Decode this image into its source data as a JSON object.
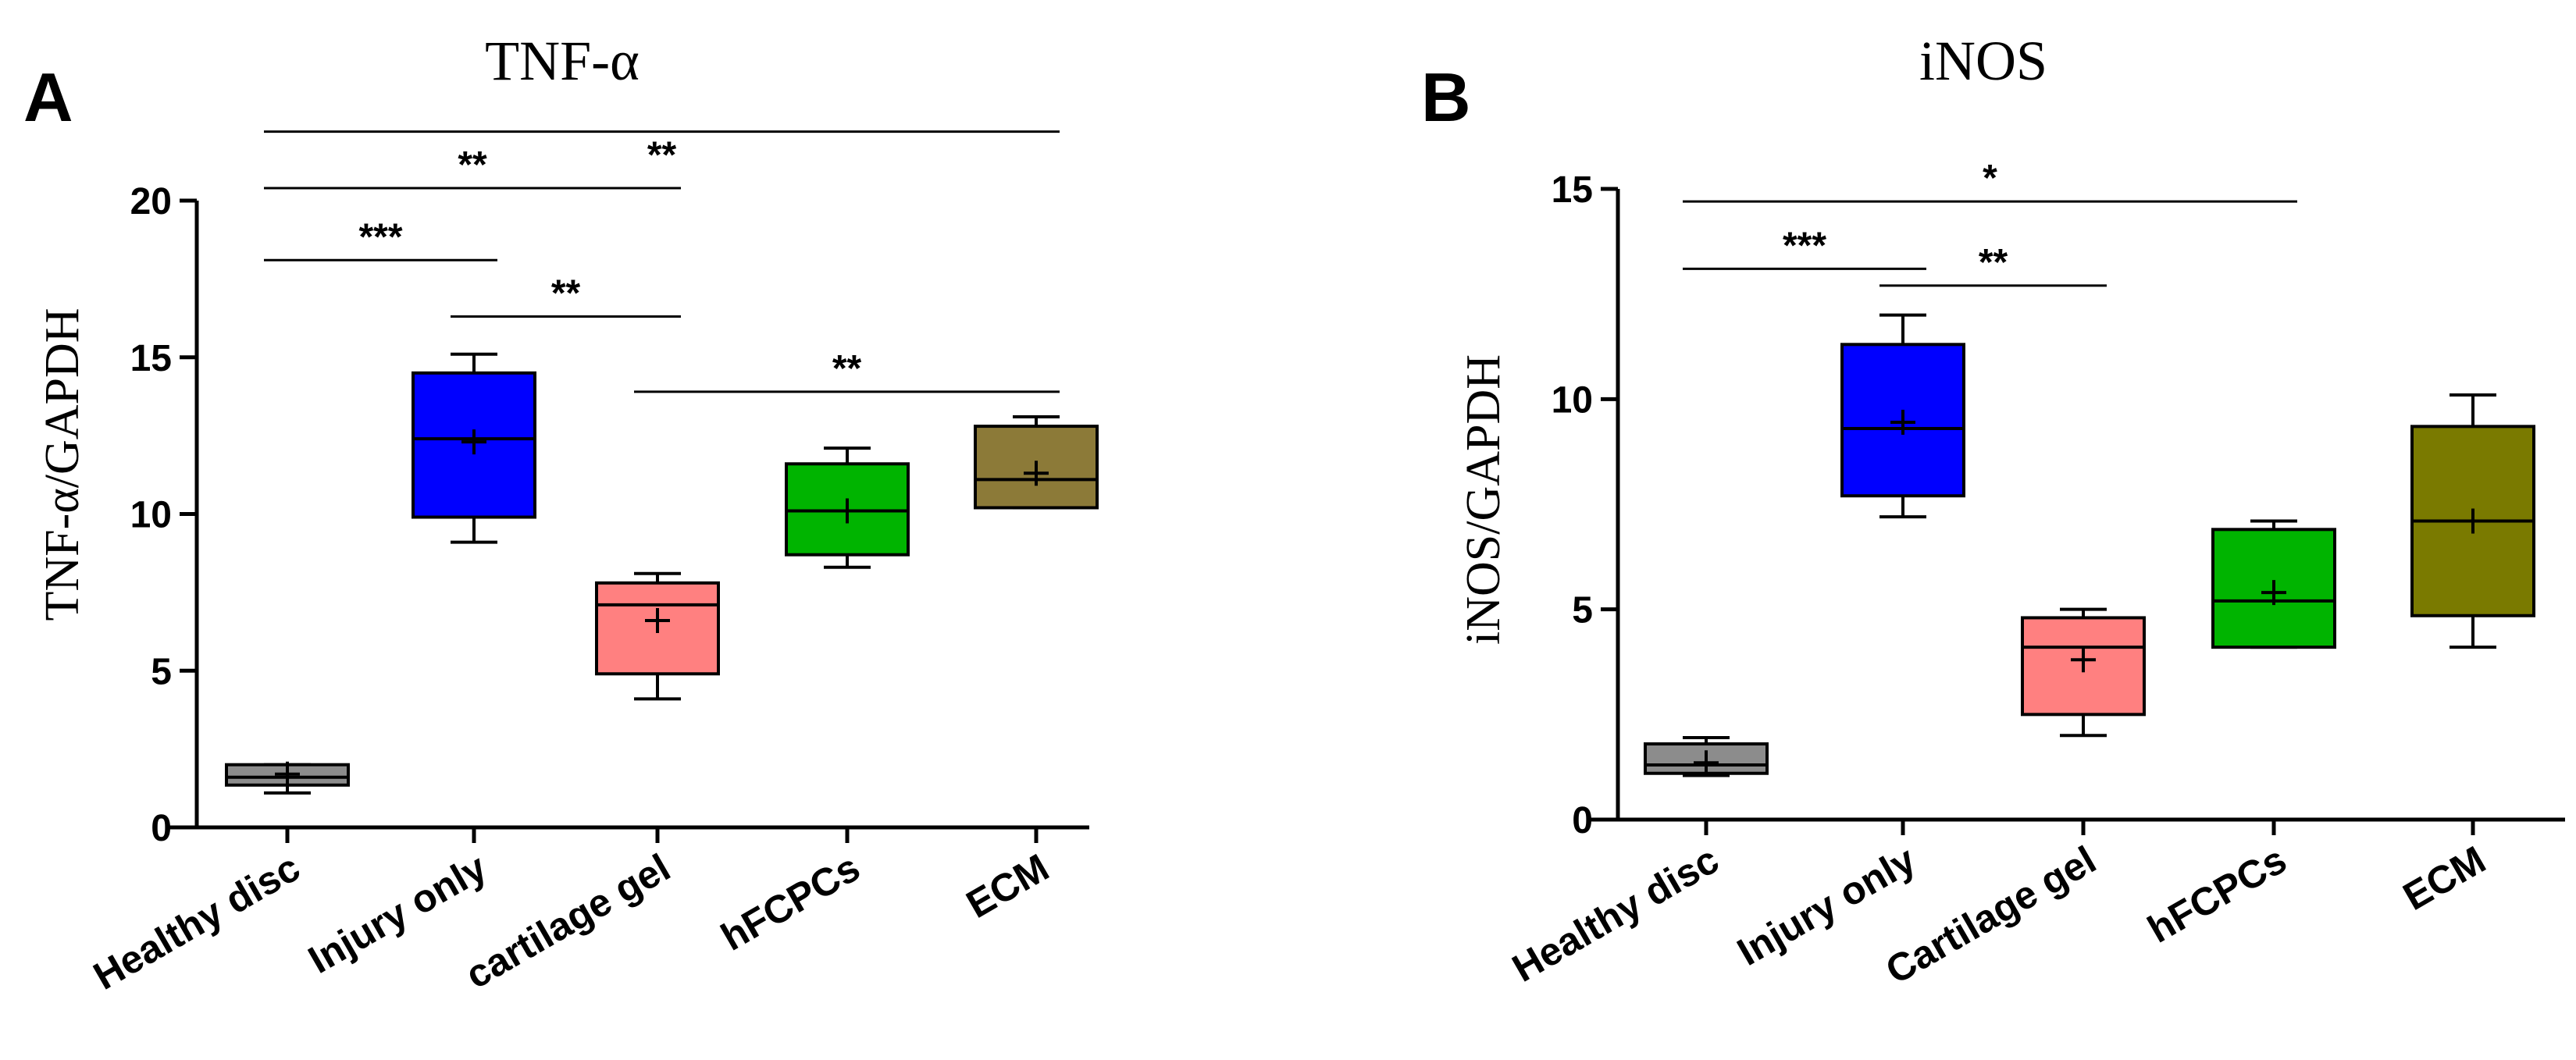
{
  "panels": [
    {
      "letter": "A",
      "chart_data": {
        "type": "box",
        "title": "TNF-α",
        "ylabel": "TNF-α/GAPDH",
        "xlabel": "",
        "ylim": [
          0,
          20
        ],
        "yticks": [
          0,
          5,
          10,
          15,
          20
        ],
        "categories": [
          "Healthy disc",
          "Injury only",
          "cartilage gel",
          "hFCPCs",
          "ECM"
        ],
        "boxes": [
          {
            "min": 1.1,
            "q1": 1.35,
            "median": 1.6,
            "q3": 2.0,
            "max": 2.0,
            "mean": 1.7,
            "color": "#8c8c8c"
          },
          {
            "min": 9.1,
            "q1": 9.9,
            "median": 12.4,
            "q3": 14.5,
            "max": 15.1,
            "mean": 12.3,
            "color": "#0000ff"
          },
          {
            "min": 4.1,
            "q1": 4.9,
            "median": 7.1,
            "q3": 7.8,
            "max": 8.1,
            "mean": 6.6,
            "color": "#ff8080"
          },
          {
            "min": 8.3,
            "q1": 8.7,
            "median": 10.1,
            "q3": 11.6,
            "max": 12.1,
            "mean": 10.1,
            "color": "#00b400"
          },
          {
            "min": 10.2,
            "q1": 10.2,
            "median": 11.1,
            "q3": 12.8,
            "max": 13.1,
            "mean": 11.3,
            "color": "#8c7a38"
          }
        ],
        "significance": [
          {
            "from": 0,
            "to": 4,
            "y": 22.2,
            "label": "**",
            "label_pos": "below"
          },
          {
            "from": 0,
            "to": 2,
            "y": 20.4,
            "label": "**",
            "label_pos": "above"
          },
          {
            "from": 0,
            "to": 1,
            "y": 18.1,
            "label": "***",
            "label_pos": "above"
          },
          {
            "from": 1,
            "to": 2,
            "y": 16.3,
            "label": "**",
            "label_pos": "above"
          },
          {
            "from": 2,
            "to": 4,
            "y": 13.9,
            "label": "**",
            "label_pos": "above"
          }
        ]
      }
    },
    {
      "letter": "B",
      "chart_data": {
        "type": "box",
        "title": "iNOS",
        "ylabel": "iNOS/GAPDH",
        "xlabel": "",
        "ylim": [
          0,
          15
        ],
        "yticks": [
          0,
          5,
          10,
          15
        ],
        "categories": [
          "Healthy disc",
          "Injury only",
          "Cartilage gel",
          "hFCPCs",
          "ECM"
        ],
        "boxes": [
          {
            "min": 1.05,
            "q1": 1.1,
            "median": 1.3,
            "q3": 1.8,
            "max": 1.95,
            "mean": 1.35,
            "color": "#8c8c8c"
          },
          {
            "min": 7.2,
            "q1": 7.7,
            "median": 9.3,
            "q3": 11.3,
            "max": 12.0,
            "mean": 9.45,
            "color": "#0000ff"
          },
          {
            "min": 2.0,
            "q1": 2.5,
            "median": 4.1,
            "q3": 4.8,
            "max": 5.0,
            "mean": 3.8,
            "color": "#ff8080"
          },
          {
            "min": 4.1,
            "q1": 4.1,
            "median": 5.2,
            "q3": 6.9,
            "max": 7.1,
            "mean": 5.4,
            "color": "#00b400"
          },
          {
            "min": 4.1,
            "q1": 4.85,
            "median": 7.1,
            "q3": 9.35,
            "max": 10.1,
            "mean": 7.1,
            "color": "#7a7a00"
          }
        ],
        "significance": [
          {
            "from": 0,
            "to": 3,
            "y": 14.7,
            "label": "*",
            "label_pos": "above"
          },
          {
            "from": 0,
            "to": 1,
            "y": 13.1,
            "label": "***",
            "label_pos": "above"
          },
          {
            "from": 1,
            "to": 2,
            "y": 12.7,
            "label": "**",
            "label_pos": "above"
          }
        ]
      }
    }
  ]
}
